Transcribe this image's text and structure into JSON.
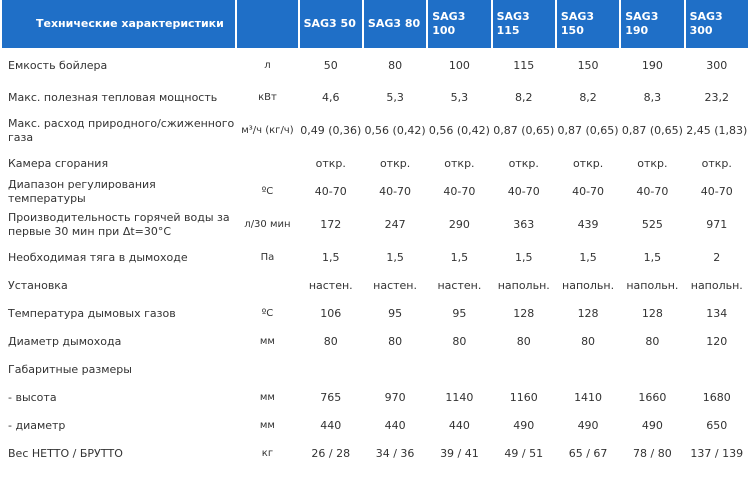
{
  "header": {
    "title": "Технические характеристики",
    "unit": "",
    "models": [
      "SAG3 50",
      "SAG3 80",
      "SAG3 100",
      "SAG3 115",
      "SAG3 150",
      "SAG3 190",
      "SAG3 300"
    ]
  },
  "rows": [
    {
      "param": "Емкость бойлера",
      "unit": "л",
      "values": [
        "50",
        "80",
        "100",
        "115",
        "150",
        "190",
        "300"
      ]
    },
    {
      "param": "Макс. полезная тепловая мощность",
      "unit": "кВт",
      "values": [
        "4,6",
        "5,3",
        "5,3",
        "8,2",
        "8,2",
        "8,3",
        "23,2"
      ]
    },
    {
      "param": "Макс. расход природного/сжиженного газа",
      "unit": "м³/ч (кг/ч)",
      "values": [
        "0,49 (0,36)",
        "0,56 (0,42)",
        "0,56 (0,42)",
        "0,87 (0,65)",
        "0,87 (0,65)",
        "0,87 (0,65)",
        "2,45 (1,83)"
      ]
    },
    {
      "param": "Камера сгорания",
      "unit": "",
      "values": [
        "откр.",
        "откр.",
        "откр.",
        "откр.",
        "откр.",
        "откр.",
        "откр."
      ]
    },
    {
      "param": "Диапазон регулирования температуры",
      "unit": "ºC",
      "values": [
        "40-70",
        "40-70",
        "40-70",
        "40-70",
        "40-70",
        "40-70",
        "40-70"
      ]
    },
    {
      "param": "Производительность горячей воды за первые 30 мин при Δt=30°C",
      "unit": "л/30 мин",
      "values": [
        "172",
        "247",
        "290",
        "363",
        "439",
        "525",
        "971"
      ]
    },
    {
      "param": "Необходимая тяга в дымоходе",
      "unit": "Па",
      "values": [
        "1,5",
        "1,5",
        "1,5",
        "1,5",
        "1,5",
        "1,5",
        "2"
      ]
    },
    {
      "param": "Установка",
      "unit": "",
      "values": [
        "настен.",
        "настен.",
        "настен.",
        "напольн.",
        "напольн.",
        "напольн.",
        "напольн."
      ]
    },
    {
      "param": "Температура дымовых газов",
      "unit": "ºC",
      "values": [
        "106",
        "95",
        "95",
        "128",
        "128",
        "128",
        "134"
      ]
    },
    {
      "param": "Диаметр дымохода",
      "unit": "мм",
      "values": [
        "80",
        "80",
        "80",
        "80",
        "80",
        "80",
        "120"
      ]
    },
    {
      "param": "Габаритные размеры",
      "unit": "",
      "values": [
        "",
        "",
        "",
        "",
        "",
        "",
        ""
      ]
    },
    {
      "param": " - высота",
      "unit": "мм",
      "values": [
        "765",
        "970",
        "1140",
        "1160",
        "1410",
        "1660",
        "1680"
      ]
    },
    {
      "param": " - диаметр",
      "unit": "мм",
      "values": [
        "440",
        "440",
        "440",
        "490",
        "490",
        "490",
        "650"
      ]
    },
    {
      "param": "Вес НЕТТО / БРУТТО",
      "unit": "кг",
      "values": [
        "26 / 28",
        "34 / 36",
        "39 / 41",
        "49 / 51",
        "65 / 67",
        "78 / 80",
        "137 / 139"
      ]
    }
  ]
}
